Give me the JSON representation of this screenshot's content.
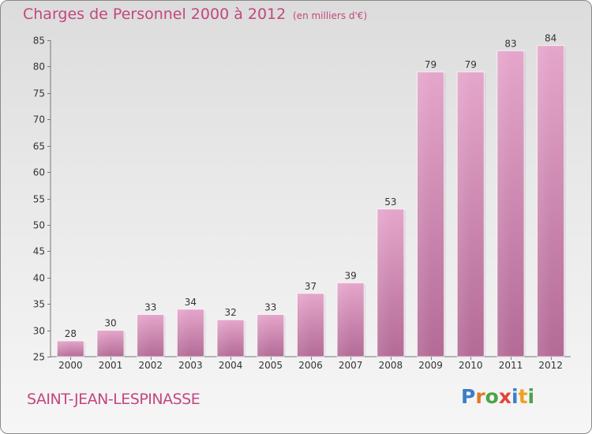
{
  "title": "Charges de Personnel 2000 à 2012",
  "subtitle": "(en milliers d'€)",
  "commune": "SAINT-JEAN-LESPINASSE",
  "logo": {
    "text": "Proxiti",
    "colors": [
      "#3a7fc7",
      "#e07a28",
      "#4aa447",
      "#e0463a",
      "#3a7fc7",
      "#f0a020",
      "#4aa447"
    ]
  },
  "colors": {
    "accent": "#c2477e",
    "bar_top": "#e5a6cb",
    "bar_bottom": "#b36b96"
  },
  "chart_data": {
    "type": "bar",
    "categories": [
      "2000",
      "2001",
      "2002",
      "2003",
      "2004",
      "2005",
      "2006",
      "2007",
      "2008",
      "2009",
      "2010",
      "2011",
      "2012"
    ],
    "values": [
      28,
      30,
      33,
      34,
      32,
      33,
      37,
      39,
      53,
      79,
      79,
      83,
      84
    ],
    "ylim": [
      25,
      85
    ],
    "yticks": [
      25,
      30,
      35,
      40,
      45,
      50,
      55,
      60,
      65,
      70,
      75,
      80,
      85
    ],
    "grid": false,
    "data_labels": true
  }
}
